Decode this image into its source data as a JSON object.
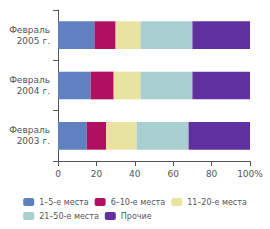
{
  "chart_data": {
    "type": "bar",
    "orientation": "horizontal",
    "stacked": true,
    "grid": false,
    "legend": "bottom",
    "categories": [
      "Февраль\n2005 г.",
      "Февраль\n2004 г.",
      "Февраль\n2003 г."
    ],
    "series": [
      {
        "name": "1–5-е места",
        "color": "#6080C0",
        "values": [
          19,
          17,
          15
        ]
      },
      {
        "name": "6–10-е места",
        "color": "#B01060",
        "values": [
          11,
          12,
          10
        ]
      },
      {
        "name": "11–20-е места",
        "color": "#E8E4A0",
        "values": [
          13,
          14,
          16
        ]
      },
      {
        "name": "21–50-е места",
        "color": "#A8CED0",
        "values": [
          27,
          27,
          27
        ]
      },
      {
        "name": "Прочие",
        "color": "#6030A0",
        "values": [
          30,
          30,
          32
        ]
      }
    ],
    "xlim": [
      0,
      100
    ],
    "xticks": [
      0,
      20,
      40,
      60,
      80,
      {
        "value": 100,
        "label": "100%"
      }
    ]
  }
}
